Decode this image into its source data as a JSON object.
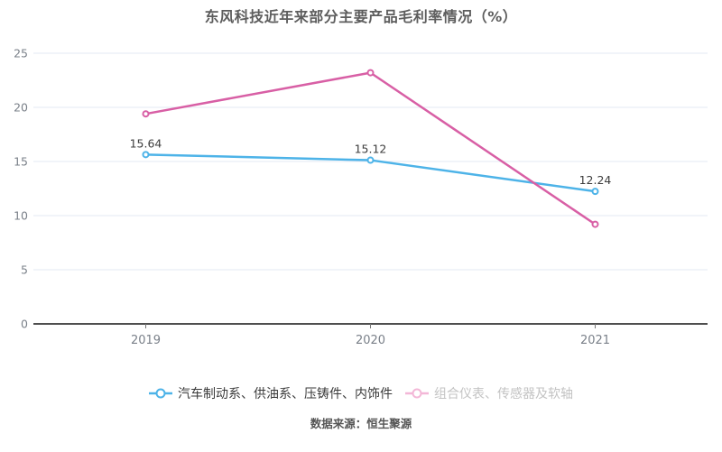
{
  "chart_data": {
    "type": "line",
    "title": "东风科技近年来部分主要产品毛利率情况（%）",
    "categories": [
      "2019",
      "2020",
      "2021"
    ],
    "series": [
      {
        "name": "汽车制动系、供油系、压铸件、内饰件",
        "values": [
          15.64,
          15.12,
          12.24
        ],
        "color": "#4db3e8",
        "show_labels": true,
        "legend_muted": false,
        "legend_icon_color": "#4db3e8"
      },
      {
        "name": "组合仪表、传感器及软轴",
        "values": [
          19.4,
          23.2,
          9.2
        ],
        "color": "#d85fa5",
        "show_labels": false,
        "legend_muted": true,
        "legend_icon_color": "#f3b7d7"
      }
    ],
    "point_labels": [
      "15.64",
      "15.12",
      "12.24"
    ],
    "ylim": [
      0,
      25
    ],
    "y_ticks": [
      0,
      5,
      10,
      15,
      20,
      25
    ],
    "grid": true,
    "legend_position": "bottom",
    "marker_style": "hollow-circle"
  },
  "footer": {
    "source_note": "数据来源：恒生聚源"
  },
  "colors": {
    "background": "#ffffff",
    "series_blue": "#4db3e8",
    "series_pink": "#d85fa5",
    "grid_line": "#e3e8f3",
    "axis_line": "#4f4f4f",
    "axis_tick": "#777777",
    "axis_label": "#7a8089",
    "title_text": "#5d5d5d",
    "point_label": "#3d3d3d",
    "legend_label_active": "#3a3a3a",
    "legend_label_muted": "#c3c3c3",
    "source_text": "#555555"
  }
}
